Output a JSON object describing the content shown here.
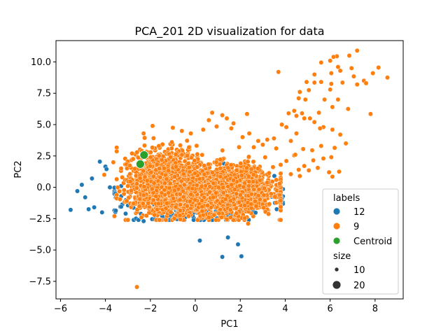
{
  "chart_data": {
    "type": "scatter",
    "title": "PCA_201 2D visualization for data",
    "xlabel": "PC1",
    "ylabel": "PC2",
    "xlim": [
      -6.2,
      9.25
    ],
    "ylim": [
      -8.9,
      11.7
    ],
    "xticks": [
      -6,
      -4,
      -2,
      0,
      2,
      4,
      6,
      8
    ],
    "xtick_labels": [
      "−6",
      "−4",
      "−2",
      "0",
      "2",
      "4",
      "6",
      "8"
    ],
    "yticks": [
      -7.5,
      -5.0,
      -2.5,
      0.0,
      2.5,
      5.0,
      7.5,
      10.0
    ],
    "ytick_labels": [
      "−7.5",
      "−5.0",
      "−2.5",
      "0.0",
      "2.5",
      "5.0",
      "7.5",
      "10.0"
    ],
    "grid": false,
    "legend_placement": "lower-right",
    "legend": {
      "hue_title": "labels",
      "size_title": "size",
      "hue_entries": [
        {
          "label": "12",
          "color": "#1f77b4"
        },
        {
          "label": "9",
          "color": "#ff7f0e"
        },
        {
          "label": "Centroid",
          "color": "#2ca02c"
        }
      ],
      "size_entries": [
        {
          "label": "10",
          "size": 10
        },
        {
          "label": "20",
          "size": 20
        }
      ]
    },
    "series": [
      {
        "name": "12",
        "color": "#1f77b4",
        "size": 10,
        "clusters": [
          {
            "cx": 0.0,
            "cy": -0.9,
            "sx": 1.55,
            "sy": 0.95,
            "n": 420
          }
        ],
        "points": [
          [
            -5.55,
            -1.8
          ],
          [
            -5.25,
            -0.3
          ],
          [
            -5.05,
            0.2
          ],
          [
            -4.9,
            -0.8
          ],
          [
            -4.75,
            -1.75
          ],
          [
            -4.6,
            0.7
          ],
          [
            -4.5,
            -1.6
          ],
          [
            -4.15,
            -2.0
          ],
          [
            -4.25,
            2.05
          ],
          [
            -4.0,
            1.65
          ],
          [
            -3.95,
            1.45
          ],
          [
            -3.8,
            0.0
          ],
          [
            -3.55,
            -0.5
          ],
          [
            -3.3,
            0.1
          ],
          [
            -3.1,
            -2.1
          ],
          [
            -3.3,
            -1.55
          ],
          [
            -2.9,
            -0.75
          ],
          [
            -2.6,
            -1.2
          ],
          [
            -2.3,
            -2.7
          ],
          [
            -1.8,
            -2.55
          ],
          [
            -1.3,
            -2.6
          ],
          [
            -0.7,
            -2.2
          ],
          [
            0.2,
            -4.25
          ],
          [
            1.45,
            -4.0
          ],
          [
            1.2,
            -5.55
          ],
          [
            1.9,
            -4.55
          ],
          [
            2.05,
            -5.5
          ],
          [
            3.1,
            -0.15
          ],
          [
            3.4,
            -0.75
          ],
          [
            3.75,
            -0.45
          ],
          [
            3.85,
            -0.9
          ],
          [
            3.3,
            0.5
          ],
          [
            2.9,
            -0.6
          ]
        ]
      },
      {
        "name": "9",
        "color": "#ff7f0e",
        "size": 10,
        "clusters": [
          {
            "cx": -1.2,
            "cy": 0.45,
            "sx": 0.85,
            "sy": 1.15,
            "n": 1500
          },
          {
            "cx": 1.6,
            "cy": -0.2,
            "sx": 0.95,
            "sy": 0.95,
            "n": 1500
          },
          {
            "cx": -0.15,
            "cy": -0.45,
            "sx": 1.25,
            "sy": 0.75,
            "n": 900
          }
        ],
        "points": [
          [
            -2.6,
            -7.95
          ],
          [
            -2.3,
            4.3
          ],
          [
            -1.9,
            4.9
          ],
          [
            -1.0,
            4.75
          ],
          [
            0.75,
            5.95
          ],
          [
            1.2,
            5.75
          ],
          [
            2.3,
            5.85
          ],
          [
            1.4,
            5.5
          ],
          [
            1.7,
            5.1
          ],
          [
            0.6,
            5.35
          ],
          [
            3.7,
            9.2
          ],
          [
            4.9,
            7.0
          ],
          [
            5.05,
            7.75
          ],
          [
            5.6,
            9.95
          ],
          [
            6.0,
            10.1
          ],
          [
            6.3,
            10.45
          ],
          [
            6.15,
            10.4
          ],
          [
            6.35,
            9.6
          ],
          [
            6.85,
            10.5
          ],
          [
            7.2,
            10.9
          ],
          [
            6.95,
            9.5
          ],
          [
            7.5,
            8.5
          ],
          [
            7.9,
            9.1
          ],
          [
            8.15,
            9.55
          ],
          [
            8.55,
            8.75
          ],
          [
            7.8,
            5.85
          ],
          [
            6.8,
            6.25
          ],
          [
            6.0,
            7.8
          ],
          [
            6.05,
            9.1
          ],
          [
            6.45,
            9.3
          ],
          [
            5.3,
            9.0
          ],
          [
            5.6,
            8.4
          ],
          [
            5.3,
            8.35
          ],
          [
            4.95,
            8.4
          ],
          [
            4.65,
            7.6
          ],
          [
            4.6,
            7.1
          ],
          [
            4.4,
            6.1
          ],
          [
            4.15,
            5.9
          ],
          [
            4.5,
            5.7
          ],
          [
            4.75,
            5.9
          ],
          [
            4.85,
            5.5
          ],
          [
            5.75,
            7.0
          ],
          [
            6.05,
            8.25
          ],
          [
            6.55,
            8.35
          ],
          [
            7.05,
            8.85
          ],
          [
            7.2,
            8.2
          ],
          [
            7.6,
            8.3
          ],
          [
            6.35,
            7.0
          ],
          [
            6.1,
            6.4
          ],
          [
            5.5,
            5.95
          ],
          [
            5.1,
            5.5
          ],
          [
            5.3,
            5.2
          ],
          [
            5.7,
            4.8
          ],
          [
            6.1,
            4.6
          ],
          [
            6.45,
            4.2
          ],
          [
            6.7,
            3.5
          ],
          [
            6.2,
            3.15
          ],
          [
            5.6,
            3.3
          ],
          [
            5.2,
            2.95
          ],
          [
            4.8,
            3.05
          ],
          [
            4.25,
            3.7
          ],
          [
            4.5,
            4.3
          ],
          [
            4.05,
            4.8
          ],
          [
            3.85,
            5.0
          ],
          [
            4.05,
            2.1
          ],
          [
            4.4,
            2.55
          ],
          [
            4.85,
            1.7
          ],
          [
            5.05,
            1.35
          ],
          [
            5.45,
            1.55
          ],
          [
            5.95,
            1.2
          ],
          [
            6.1,
            0.85
          ],
          [
            6.4,
            1.25
          ],
          [
            5.7,
            2.3
          ],
          [
            5.25,
            2.15
          ],
          [
            6.05,
            2.4
          ],
          [
            4.65,
            0.9
          ],
          [
            4.25,
            1.05
          ],
          [
            4.45,
            2.6
          ],
          [
            4.6,
            1.4
          ],
          [
            5.55,
            4.7
          ],
          [
            3.5,
            3.9
          ],
          [
            3.2,
            3.8
          ],
          [
            3.6,
            3.1
          ],
          [
            2.8,
            3.7
          ],
          [
            3.0,
            3.4
          ],
          [
            2.6,
            3.2
          ],
          [
            2.4,
            4.3
          ],
          [
            2.1,
            4.0
          ],
          [
            0.95,
            4.85
          ],
          [
            1.6,
            4.7
          ],
          [
            -0.2,
            4.3
          ],
          [
            -0.6,
            4.5
          ],
          [
            0.35,
            4.6
          ],
          [
            -3.6,
            -2.3
          ],
          [
            -3.0,
            -2.6
          ],
          [
            -2.4,
            -2.4
          ],
          [
            -1.6,
            -2.6
          ],
          [
            -0.3,
            -2.3
          ],
          [
            0.6,
            -2.4
          ],
          [
            1.4,
            -2.55
          ],
          [
            2.2,
            -2.45
          ],
          [
            2.35,
            -2.9
          ],
          [
            -3.65,
            2.0
          ],
          [
            -3.3,
            1.5
          ],
          [
            -4.05,
            1.0
          ]
        ]
      },
      {
        "name": "Centroid",
        "color": "#2ca02c",
        "size": 20,
        "points": [
          [
            -2.28,
            2.58
          ],
          [
            -2.45,
            1.85
          ]
        ]
      }
    ]
  }
}
